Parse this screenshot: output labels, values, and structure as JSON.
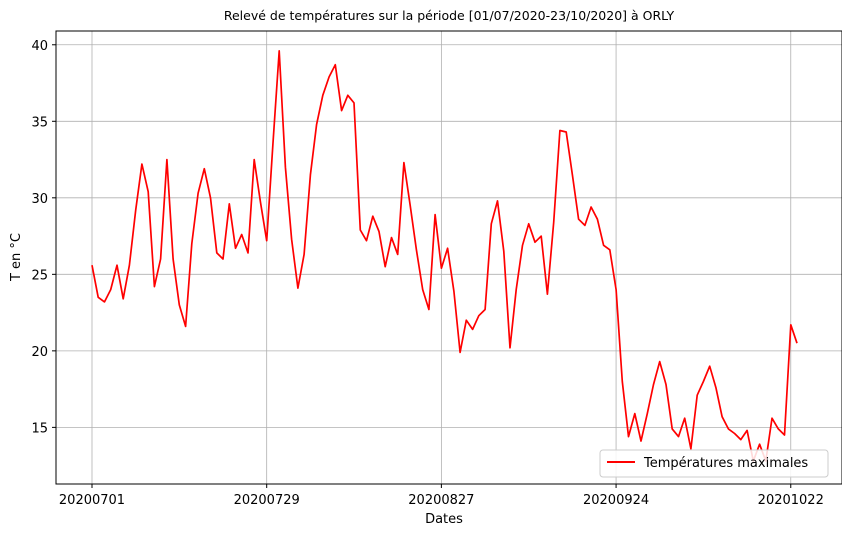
{
  "chart_data": {
    "type": "line",
    "title": "Relevé de températures sur la période [01/07/2020-23/10/2020] à ORLY",
    "xlabel": "Dates",
    "ylabel": "T en °C",
    "x_tick_labels": [
      "20200701",
      "20200729",
      "20200827",
      "20200924",
      "20201022"
    ],
    "y_ticks": [
      15,
      20,
      25,
      30,
      35,
      40
    ],
    "ylim": [
      11.3,
      40.9
    ],
    "grid": true,
    "legend_position": "bottom-right",
    "series": [
      {
        "name": "Températures maximales",
        "color": "#ff0000",
        "values": [
          25.6,
          23.5,
          23.2,
          24.0,
          25.6,
          23.4,
          25.6,
          29.2,
          32.2,
          30.4,
          24.2,
          26.0,
          32.5,
          26.0,
          23.0,
          21.6,
          27.0,
          30.3,
          31.9,
          30.0,
          26.4,
          26.0,
          29.6,
          26.7,
          27.6,
          26.4,
          32.5,
          29.7,
          27.2,
          33.5,
          39.6,
          32.0,
          27.3,
          24.1,
          26.3,
          31.5,
          34.8,
          36.7,
          37.9,
          38.7,
          35.7,
          36.7,
          36.2,
          27.9,
          27.2,
          28.8,
          27.8,
          25.5,
          27.4,
          26.3,
          32.3,
          29.5,
          26.6,
          24.0,
          22.7,
          28.9,
          25.4,
          26.7,
          23.9,
          19.9,
          22.0,
          21.4,
          22.3,
          22.7,
          28.3,
          29.8,
          26.5,
          20.2,
          24.0,
          26.9,
          28.3,
          27.1,
          27.5,
          23.7,
          28.4,
          34.4,
          34.3,
          31.5,
          28.6,
          28.2,
          29.4,
          28.6,
          26.9,
          26.6,
          24.0,
          18.0,
          14.4,
          15.9,
          14.1,
          15.9,
          17.8,
          19.3,
          17.8,
          14.9,
          14.4,
          15.6,
          13.6,
          17.1,
          18.0,
          19.0,
          17.6,
          15.7,
          14.9,
          14.6,
          14.2,
          14.8,
          12.8,
          13.9,
          12.8,
          15.6,
          14.9,
          14.5,
          21.7,
          20.5
        ]
      }
    ]
  }
}
